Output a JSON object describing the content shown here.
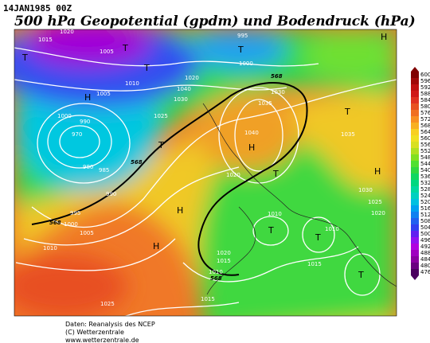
{
  "header": {
    "date": "14JAN1985 00Z",
    "title": "500 hPa Geopotential (gpdm) und Bodendruck (hPa)"
  },
  "legend": {
    "levels": [
      600,
      596,
      592,
      588,
      584,
      580,
      576,
      572,
      568,
      564,
      560,
      556,
      552,
      548,
      544,
      540,
      536,
      532,
      528,
      524,
      520,
      516,
      512,
      508,
      504,
      500,
      496,
      492,
      488,
      484,
      480,
      476
    ],
    "colors": [
      "#800000",
      "#a00808",
      "#c01010",
      "#d01818",
      "#e03020",
      "#e85020",
      "#f07020",
      "#f89020",
      "#f8b020",
      "#f8d020",
      "#f0e020",
      "#d8e020",
      "#b0e020",
      "#80e020",
      "#50e030",
      "#30d840",
      "#10d860",
      "#00d880",
      "#00d8a0",
      "#00d0c0",
      "#00c0e0",
      "#00a0f0",
      "#1080f0",
      "#2060f0",
      "#3040f0",
      "#6020f0",
      "#9010f0",
      "#b000e0",
      "#a000c0",
      "#8a00a0",
      "#6a0080",
      "#4b0060"
    ]
  },
  "map_labels": [
    "1020",
    "1015",
    "995",
    "1005",
    "1000",
    "1010",
    "1020",
    "1040",
    "1030",
    "1005",
    "1025",
    "1000",
    "990",
    "970",
    "980",
    "985",
    "990",
    "995",
    "1000",
    "1005",
    "1010",
    "1025",
    "1035",
    "1030",
    "1040",
    "1035",
    "1030",
    "1025",
    "1020",
    "1010",
    "1010",
    "1015",
    "1020",
    "1015",
    "1010",
    "1015",
    "1020",
    "T",
    "T",
    "T",
    "H",
    "T",
    "H",
    "T",
    "H",
    "T",
    "H",
    "H",
    "H",
    "T",
    "T",
    "T",
    "T",
    "568",
    "568",
    "568",
    "568"
  ],
  "footer": {
    "source": "Daten: Reanalysis des NCEP",
    "copyright": "(C) Wetterzentrale",
    "url": "www.wetterzentrale.de"
  }
}
